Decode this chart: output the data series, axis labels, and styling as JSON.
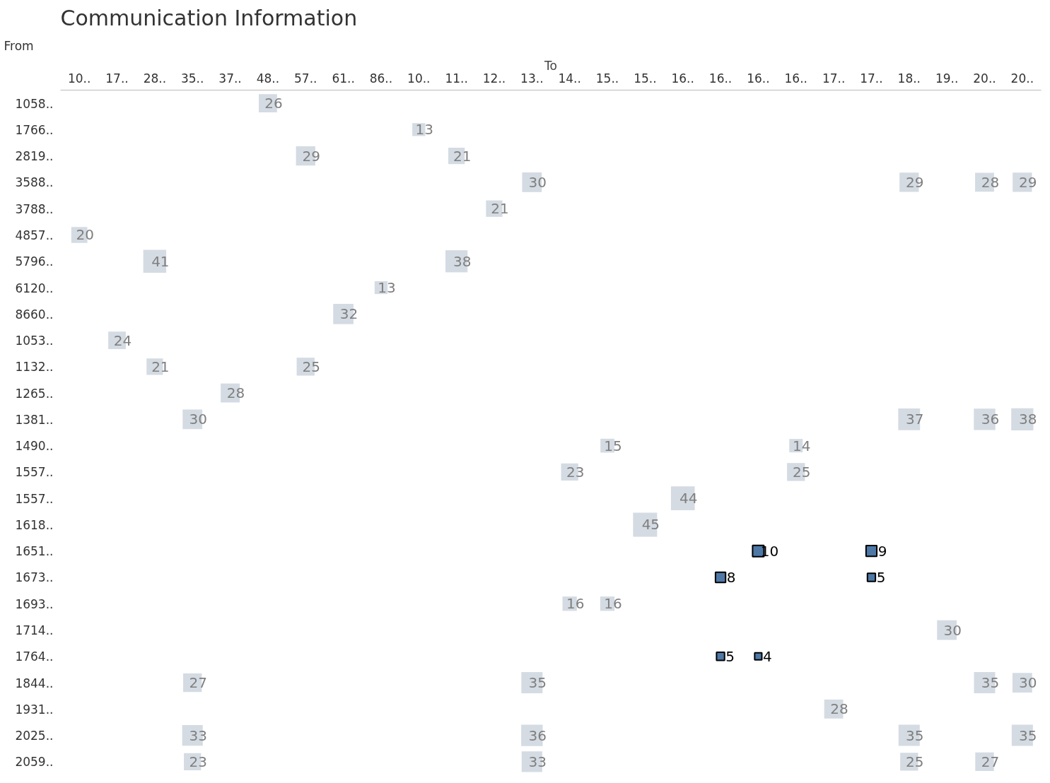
{
  "chart_data": {
    "type": "heatmap",
    "title": "Communication Information",
    "xlabel": "To",
    "ylabel": "From",
    "categories": [
      "10..",
      "17..",
      "28..",
      "35..",
      "37..",
      "48..",
      "57..",
      "61..",
      "86..",
      "10..",
      "11..",
      "12..",
      "13..",
      "14..",
      "15..",
      "15..",
      "16..",
      "16..",
      "16..",
      "16..",
      "17..",
      "17..",
      "18..",
      "19..",
      "20..",
      "20.."
    ],
    "y_categories": [
      "1058..",
      "1766..",
      "2819..",
      "3588..",
      "3788..",
      "4857..",
      "5796..",
      "6120..",
      "8660..",
      "1053..",
      "1132..",
      "1265..",
      "1381..",
      "1490..",
      "1557..",
      "1557..",
      "1618..",
      "1651..",
      "1673..",
      "1693..",
      "1714..",
      "1764..",
      "1844..",
      "1931..",
      "2025..",
      "2059.."
    ],
    "cells": [
      [
        null,
        null,
        null,
        null,
        null,
        26,
        null,
        null,
        null,
        null,
        null,
        null,
        null,
        null,
        null,
        null,
        null,
        null,
        null,
        null,
        null,
        null,
        null,
        null,
        null,
        null
      ],
      [
        null,
        null,
        null,
        null,
        null,
        null,
        null,
        null,
        null,
        13,
        null,
        null,
        null,
        null,
        null,
        null,
        null,
        null,
        null,
        null,
        null,
        null,
        null,
        null,
        null,
        null
      ],
      [
        null,
        null,
        null,
        null,
        null,
        null,
        29,
        null,
        null,
        null,
        21,
        null,
        null,
        null,
        null,
        null,
        null,
        null,
        null,
        null,
        null,
        null,
        null,
        null,
        null,
        null
      ],
      [
        null,
        null,
        null,
        null,
        null,
        null,
        null,
        null,
        null,
        null,
        null,
        null,
        30,
        null,
        null,
        null,
        null,
        null,
        null,
        null,
        null,
        null,
        29,
        null,
        28,
        29
      ],
      [
        null,
        null,
        null,
        null,
        null,
        null,
        null,
        null,
        null,
        null,
        null,
        21,
        null,
        null,
        null,
        null,
        null,
        null,
        null,
        null,
        null,
        null,
        null,
        null,
        null,
        null
      ],
      [
        20,
        null,
        null,
        null,
        null,
        null,
        null,
        null,
        null,
        null,
        null,
        null,
        null,
        null,
        null,
        null,
        null,
        null,
        null,
        null,
        null,
        null,
        null,
        null,
        null,
        null
      ],
      [
        null,
        null,
        41,
        null,
        null,
        null,
        null,
        null,
        null,
        null,
        38,
        null,
        null,
        null,
        null,
        null,
        null,
        null,
        null,
        null,
        null,
        null,
        null,
        null,
        null,
        null
      ],
      [
        null,
        null,
        null,
        null,
        null,
        null,
        null,
        null,
        13,
        null,
        null,
        null,
        null,
        null,
        null,
        null,
        null,
        null,
        null,
        null,
        null,
        null,
        null,
        null,
        null,
        null
      ],
      [
        null,
        null,
        null,
        null,
        null,
        null,
        null,
        32,
        null,
        null,
        null,
        null,
        null,
        null,
        null,
        null,
        null,
        null,
        null,
        null,
        null,
        null,
        null,
        null,
        null,
        null
      ],
      [
        null,
        24,
        null,
        null,
        null,
        null,
        null,
        null,
        null,
        null,
        null,
        null,
        null,
        null,
        null,
        null,
        null,
        null,
        null,
        null,
        null,
        null,
        null,
        null,
        null,
        null
      ],
      [
        null,
        null,
        21,
        null,
        null,
        null,
        25,
        null,
        null,
        null,
        null,
        null,
        null,
        null,
        null,
        null,
        null,
        null,
        null,
        null,
        null,
        null,
        null,
        null,
        null,
        null
      ],
      [
        null,
        null,
        null,
        null,
        28,
        null,
        null,
        null,
        null,
        null,
        null,
        null,
        null,
        null,
        null,
        null,
        null,
        null,
        null,
        null,
        null,
        null,
        null,
        null,
        null,
        null
      ],
      [
        null,
        null,
        null,
        30,
        null,
        null,
        null,
        null,
        null,
        null,
        null,
        null,
        null,
        null,
        null,
        null,
        null,
        null,
        null,
        null,
        null,
        null,
        37,
        null,
        36,
        38
      ],
      [
        null,
        null,
        null,
        null,
        null,
        null,
        null,
        null,
        null,
        null,
        null,
        null,
        null,
        null,
        15,
        null,
        null,
        null,
        null,
        14,
        null,
        null,
        null,
        null,
        null,
        null
      ],
      [
        null,
        null,
        null,
        null,
        null,
        null,
        null,
        null,
        null,
        null,
        null,
        null,
        null,
        23,
        null,
        null,
        null,
        null,
        null,
        25,
        null,
        null,
        null,
        null,
        null,
        null
      ],
      [
        null,
        null,
        null,
        null,
        null,
        null,
        null,
        null,
        null,
        null,
        null,
        null,
        null,
        null,
        null,
        null,
        44,
        null,
        null,
        null,
        null,
        null,
        null,
        null,
        null,
        null
      ],
      [
        null,
        null,
        null,
        null,
        null,
        null,
        null,
        null,
        null,
        null,
        null,
        null,
        null,
        null,
        null,
        45,
        null,
        null,
        null,
        null,
        null,
        null,
        null,
        null,
        null,
        null
      ],
      [
        null,
        null,
        null,
        null,
        null,
        null,
        null,
        null,
        null,
        null,
        null,
        null,
        null,
        null,
        null,
        null,
        null,
        null,
        10,
        null,
        null,
        9,
        null,
        null,
        null,
        null
      ],
      [
        null,
        null,
        null,
        null,
        null,
        null,
        null,
        null,
        null,
        null,
        null,
        null,
        null,
        null,
        null,
        null,
        null,
        8,
        null,
        null,
        null,
        5,
        null,
        null,
        null,
        null
      ],
      [
        null,
        null,
        null,
        null,
        null,
        null,
        null,
        null,
        null,
        null,
        null,
        null,
        null,
        16,
        16,
        null,
        null,
        null,
        null,
        null,
        null,
        null,
        null,
        null,
        null,
        null
      ],
      [
        null,
        null,
        null,
        null,
        null,
        null,
        null,
        null,
        null,
        null,
        null,
        null,
        null,
        null,
        null,
        null,
        null,
        null,
        null,
        null,
        null,
        null,
        null,
        30,
        null,
        null
      ],
      [
        null,
        null,
        null,
        null,
        null,
        null,
        null,
        null,
        null,
        null,
        null,
        null,
        null,
        null,
        null,
        null,
        null,
        5,
        4,
        null,
        null,
        null,
        null,
        null,
        null,
        null
      ],
      [
        null,
        null,
        null,
        27,
        null,
        null,
        null,
        null,
        null,
        null,
        null,
        null,
        35,
        null,
        null,
        null,
        null,
        null,
        null,
        null,
        null,
        null,
        null,
        null,
        35,
        30
      ],
      [
        null,
        null,
        null,
        null,
        null,
        null,
        null,
        null,
        null,
        null,
        null,
        null,
        null,
        null,
        null,
        null,
        null,
        null,
        null,
        null,
        28,
        null,
        null,
        null,
        null,
        null
      ],
      [
        null,
        null,
        null,
        33,
        null,
        null,
        null,
        null,
        null,
        null,
        null,
        null,
        36,
        null,
        null,
        null,
        null,
        null,
        null,
        null,
        null,
        null,
        35,
        null,
        null,
        35
      ],
      [
        null,
        null,
        null,
        23,
        null,
        null,
        null,
        null,
        null,
        null,
        null,
        null,
        33,
        null,
        null,
        null,
        null,
        null,
        null,
        null,
        null,
        null,
        25,
        null,
        27,
        null
      ]
    ],
    "colors": [
      [
        null,
        null,
        null,
        null,
        null,
        "#d4dbe3",
        null,
        null,
        null,
        null,
        null,
        null,
        null,
        null,
        null,
        null,
        null,
        null,
        null,
        null,
        null,
        null,
        null,
        null,
        null,
        null
      ],
      [
        null,
        null,
        null,
        null,
        null,
        null,
        null,
        null,
        null,
        "#d4dbe3",
        null,
        null,
        null,
        null,
        null,
        null,
        null,
        null,
        null,
        null,
        null,
        null,
        null,
        null,
        null,
        null
      ],
      [
        null,
        null,
        null,
        null,
        null,
        null,
        "#d4dbe3",
        null,
        null,
        null,
        "#d4dbe3",
        null,
        null,
        null,
        null,
        null,
        null,
        null,
        null,
        null,
        null,
        null,
        null,
        null,
        null,
        null
      ],
      [
        null,
        null,
        null,
        null,
        null,
        null,
        null,
        null,
        null,
        null,
        null,
        null,
        "#d4dbe3",
        null,
        null,
        null,
        null,
        null,
        null,
        null,
        null,
        null,
        "#d4dbe3",
        null,
        "#d4dbe3",
        "#d4dbe3"
      ],
      [
        null,
        null,
        null,
        null,
        null,
        null,
        null,
        null,
        null,
        null,
        null,
        "#d4dbe3",
        null,
        null,
        null,
        null,
        null,
        null,
        null,
        null,
        null,
        null,
        null,
        null,
        null,
        null
      ],
      [
        "#d4dbe3",
        null,
        null,
        null,
        null,
        null,
        null,
        null,
        null,
        null,
        null,
        null,
        null,
        null,
        null,
        null,
        null,
        null,
        null,
        null,
        null,
        null,
        null,
        null,
        null,
        null
      ],
      [
        null,
        null,
        "#d4dbe3",
        null,
        null,
        null,
        null,
        null,
        null,
        null,
        "#d4dbe3",
        null,
        null,
        null,
        null,
        null,
        null,
        null,
        null,
        null,
        null,
        null,
        null,
        null,
        null,
        null
      ],
      [
        null,
        null,
        null,
        null,
        null,
        null,
        null,
        null,
        "#d4dbe3",
        null,
        null,
        null,
        null,
        null,
        null,
        null,
        null,
        null,
        null,
        null,
        null,
        null,
        null,
        null,
        null,
        null
      ],
      [
        null,
        null,
        null,
        null,
        null,
        null,
        null,
        "#d4dbe3",
        null,
        null,
        null,
        null,
        null,
        null,
        null,
        null,
        null,
        null,
        null,
        null,
        null,
        null,
        null,
        null,
        null,
        null
      ],
      [
        null,
        "#d4dbe3",
        null,
        null,
        null,
        null,
        null,
        null,
        null,
        null,
        null,
        null,
        null,
        null,
        null,
        null,
        null,
        null,
        null,
        null,
        null,
        null,
        null,
        null,
        null,
        null
      ],
      [
        null,
        null,
        "#d4dbe3",
        null,
        null,
        null,
        "#d4dbe3",
        null,
        null,
        null,
        null,
        null,
        null,
        null,
        null,
        null,
        null,
        null,
        null,
        null,
        null,
        null,
        null,
        null,
        null,
        null
      ],
      [
        null,
        null,
        null,
        null,
        "#d4dbe3",
        null,
        null,
        null,
        null,
        null,
        null,
        null,
        null,
        null,
        null,
        null,
        null,
        null,
        null,
        null,
        null,
        null,
        null,
        null,
        null,
        null
      ],
      [
        null,
        null,
        null,
        "#d4dbe3",
        null,
        null,
        null,
        null,
        null,
        null,
        null,
        null,
        null,
        null,
        null,
        null,
        null,
        null,
        null,
        null,
        null,
        null,
        "#d4dbe3",
        null,
        "#d4dbe3",
        "#d4dbe3"
      ],
      [
        null,
        null,
        null,
        null,
        null,
        null,
        null,
        null,
        null,
        null,
        null,
        null,
        null,
        null,
        "#d4dbe3",
        null,
        null,
        null,
        null,
        "#d4dbe3",
        null,
        null,
        null,
        null,
        null,
        null
      ],
      [
        null,
        null,
        null,
        null,
        null,
        null,
        null,
        null,
        null,
        null,
        null,
        null,
        null,
        "#d4dbe3",
        null,
        null,
        null,
        null,
        null,
        "#d4dbe3",
        null,
        null,
        null,
        null,
        null,
        null
      ],
      [
        null,
        null,
        null,
        null,
        null,
        null,
        null,
        null,
        null,
        null,
        null,
        null,
        null,
        null,
        null,
        null,
        "#d4dbe3",
        null,
        null,
        null,
        null,
        null,
        null,
        null,
        null,
        null
      ],
      [
        null,
        null,
        null,
        null,
        null,
        null,
        null,
        null,
        null,
        null,
        null,
        null,
        null,
        null,
        null,
        "#d4dbe3",
        null,
        null,
        null,
        null,
        null,
        null,
        null,
        null,
        null,
        null
      ],
      [
        null,
        null,
        null,
        null,
        null,
        null,
        null,
        null,
        null,
        null,
        null,
        null,
        null,
        null,
        null,
        null,
        null,
        null,
        "#4e79a7",
        null,
        null,
        "#4e79a7",
        null,
        null,
        null,
        null
      ],
      [
        null,
        null,
        null,
        null,
        null,
        null,
        null,
        null,
        null,
        null,
        null,
        null,
        null,
        null,
        null,
        null,
        null,
        "#4e79a7",
        null,
        null,
        null,
        "#4e79a7",
        null,
        null,
        null,
        null
      ],
      [
        null,
        null,
        null,
        null,
        null,
        null,
        null,
        null,
        null,
        null,
        null,
        null,
        null,
        "#d4dbe3",
        "#d4dbe3",
        null,
        null,
        null,
        null,
        null,
        null,
        null,
        null,
        null,
        null,
        null
      ],
      [
        null,
        null,
        null,
        null,
        null,
        null,
        null,
        null,
        null,
        null,
        null,
        null,
        null,
        null,
        null,
        null,
        null,
        null,
        null,
        null,
        null,
        null,
        null,
        "#d4dbe3",
        null,
        null
      ],
      [
        null,
        null,
        null,
        null,
        null,
        null,
        null,
        null,
        null,
        null,
        null,
        null,
        null,
        null,
        null,
        null,
        null,
        "#4e79a7",
        "#4e79a7",
        null,
        null,
        null,
        null,
        null,
        null,
        null
      ],
      [
        null,
        null,
        null,
        "#d4dbe3",
        null,
        null,
        null,
        null,
        null,
        null,
        null,
        null,
        "#d4dbe3",
        null,
        null,
        null,
        null,
        null,
        null,
        null,
        null,
        null,
        null,
        null,
        "#d4dbe3",
        "#d4dbe3"
      ],
      [
        null,
        null,
        null,
        null,
        null,
        null,
        null,
        null,
        null,
        null,
        null,
        null,
        null,
        null,
        null,
        null,
        null,
        null,
        null,
        null,
        "#d4dbe3",
        null,
        null,
        null,
        null,
        null
      ],
      [
        null,
        null,
        null,
        "#d4dbe3",
        null,
        null,
        null,
        null,
        null,
        null,
        null,
        null,
        "#d4dbe3",
        null,
        null,
        null,
        null,
        null,
        null,
        null,
        null,
        null,
        "#d4dbe3",
        null,
        null,
        "#d4dbe3"
      ],
      [
        null,
        null,
        null,
        "#d4dbe3",
        null,
        null,
        null,
        null,
        null,
        null,
        null,
        null,
        "#d4dbe3",
        null,
        null,
        null,
        null,
        null,
        null,
        null,
        null,
        null,
        "#d4dbe3",
        null,
        "#d4dbe3",
        null
      ]
    ],
    "data_labels": true
  }
}
